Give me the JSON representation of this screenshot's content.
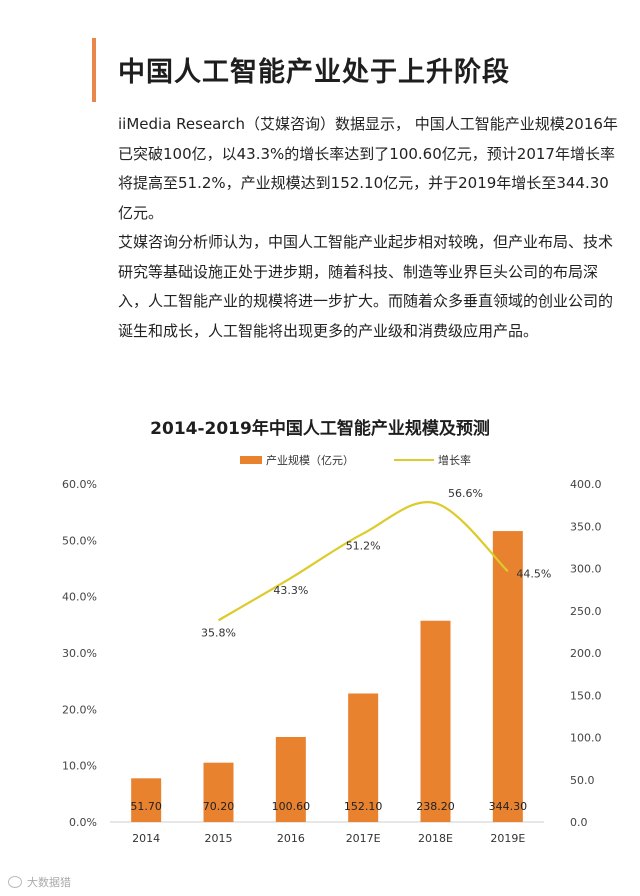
{
  "header": {
    "title": "中国人工智能产业处于上升阶段"
  },
  "article": {
    "paragraph1": "iiMedia Research（艾媒咨询）数据显示， 中国人工智能产业规模2016年已突破100亿，以43.3%的增长率达到了100.60亿元，预计2017年增长率将提高至51.2%，产业规模达到152.10亿元，并于2019年增长至344.30亿元。",
    "paragraph2": "艾媒咨询分析师认为，中国人工智能产业起步相对较晚，但产业布局、技术研究等基础设施正处于进步期，随着科技、制造等业界巨头公司的布局深入，人工智能产业的规模将进一步扩大。而随着众多垂直领域的创业公司的诞生和成长，人工智能将出现更多的产业级和消费级应用产品。"
  },
  "footer": {
    "watermark": "大数据猎"
  },
  "chart_data": {
    "type": "bar",
    "title": "2014-2019年中国人工智能产业规模及预测",
    "categories": [
      "2014",
      "2015",
      "2016",
      "2017E",
      "2018E",
      "2019E"
    ],
    "series": [
      {
        "name": "产业规模（亿元）",
        "type": "bar",
        "axis": "right",
        "values": [
          51.7,
          70.2,
          100.6,
          152.1,
          238.2,
          344.3
        ],
        "labels": [
          "51.70",
          "70.20",
          "100.60",
          "152.10",
          "238.20",
          "344.30"
        ],
        "color": "#e8822f"
      },
      {
        "name": "增长率",
        "type": "line",
        "axis": "left",
        "values": [
          null,
          35.8,
          43.3,
          51.2,
          56.6,
          44.5
        ],
        "labels": [
          "",
          "35.8%",
          "43.3%",
          "51.2%",
          "56.6%",
          "44.5%"
        ],
        "color": "#dccb2a"
      }
    ],
    "left_axis": {
      "ylim": [
        0,
        60
      ],
      "ticks": [
        0,
        10,
        20,
        30,
        40,
        50,
        60
      ],
      "tick_labels": [
        "0.0%",
        "10.0%",
        "20.0%",
        "30.0%",
        "40.0%",
        "50.0%",
        "60.0%"
      ]
    },
    "right_axis": {
      "ylim": [
        0,
        400
      ],
      "ticks": [
        0,
        50,
        100,
        150,
        200,
        250,
        300,
        350,
        400
      ],
      "tick_labels": [
        "0.0",
        "50.0",
        "100.0",
        "150.0",
        "200.0",
        "250.0",
        "300.0",
        "350.0",
        "400.0"
      ]
    },
    "legend_position": "top-center",
    "grid": false
  }
}
